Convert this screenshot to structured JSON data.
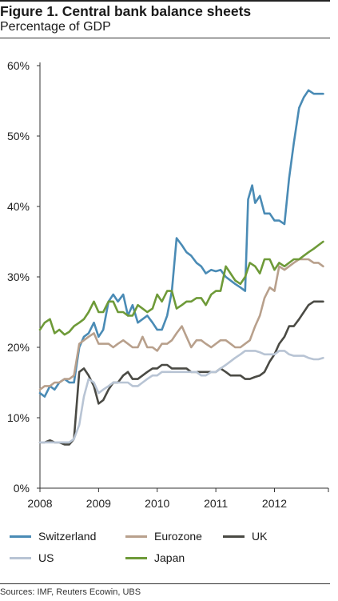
{
  "figure": {
    "title": "Figure 1. Central bank balance sheets",
    "subtitle": "Percentage of GDP",
    "source": "Sources: IMF, Reuters Ecowin, UBS"
  },
  "chart_data": {
    "type": "line",
    "title": "Figure 1. Central bank balance sheets",
    "subtitle": "Percentage of GDP",
    "xlabel": "",
    "ylabel": "",
    "xlim": [
      2008.0,
      2012.92
    ],
    "ylim": [
      0,
      60
    ],
    "x_ticks": [
      2008,
      2009,
      2010,
      2011,
      2012
    ],
    "y_ticks": [
      0,
      10,
      20,
      30,
      40,
      50,
      60
    ],
    "y_tick_labels": [
      "0%",
      "10%",
      "20%",
      "30%",
      "40%",
      "50%",
      "60%"
    ],
    "grid": false,
    "legend_position": "bottom",
    "series": [
      {
        "name": "Switzerland",
        "color": "#4a8bb5",
        "points": [
          [
            2008.0,
            13.5
          ],
          [
            2008.08,
            13.0
          ],
          [
            2008.17,
            14.5
          ],
          [
            2008.25,
            14.0
          ],
          [
            2008.33,
            15.0
          ],
          [
            2008.42,
            15.5
          ],
          [
            2008.5,
            15.0
          ],
          [
            2008.58,
            15.0
          ],
          [
            2008.67,
            20.0
          ],
          [
            2008.75,
            21.5
          ],
          [
            2008.83,
            22.0
          ],
          [
            2008.92,
            23.5
          ],
          [
            2009.0,
            21.5
          ],
          [
            2009.08,
            22.5
          ],
          [
            2009.17,
            26.5
          ],
          [
            2009.25,
            27.5
          ],
          [
            2009.33,
            26.5
          ],
          [
            2009.42,
            27.5
          ],
          [
            2009.5,
            24.5
          ],
          [
            2009.58,
            26.0
          ],
          [
            2009.67,
            23.5
          ],
          [
            2009.75,
            24.0
          ],
          [
            2009.83,
            24.5
          ],
          [
            2009.92,
            23.5
          ],
          [
            2010.0,
            22.5
          ],
          [
            2010.08,
            22.5
          ],
          [
            2010.17,
            24.5
          ],
          [
            2010.25,
            28.0
          ],
          [
            2010.33,
            35.5
          ],
          [
            2010.42,
            34.5
          ],
          [
            2010.5,
            33.5
          ],
          [
            2010.58,
            33.0
          ],
          [
            2010.67,
            32.0
          ],
          [
            2010.75,
            31.5
          ],
          [
            2010.83,
            30.5
          ],
          [
            2010.92,
            31.0
          ],
          [
            2011.0,
            30.8
          ],
          [
            2011.08,
            31.0
          ],
          [
            2011.17,
            30.0
          ],
          [
            2011.25,
            29.5
          ],
          [
            2011.33,
            29.0
          ],
          [
            2011.42,
            28.5
          ],
          [
            2011.5,
            28.0
          ],
          [
            2011.55,
            41.0
          ],
          [
            2011.62,
            43.0
          ],
          [
            2011.67,
            40.5
          ],
          [
            2011.75,
            41.5
          ],
          [
            2011.83,
            39.0
          ],
          [
            2011.92,
            39.0
          ],
          [
            2012.0,
            38.0
          ],
          [
            2012.08,
            38.0
          ],
          [
            2012.17,
            37.5
          ],
          [
            2012.25,
            44.0
          ],
          [
            2012.33,
            49.0
          ],
          [
            2012.42,
            54.0
          ],
          [
            2012.5,
            55.5
          ],
          [
            2012.58,
            56.5
          ],
          [
            2012.67,
            56.0
          ],
          [
            2012.75,
            56.0
          ],
          [
            2012.83,
            56.0
          ]
        ]
      },
      {
        "name": "Eurozone",
        "color": "#b8a08c",
        "points": [
          [
            2008.0,
            14.0
          ],
          [
            2008.08,
            14.5
          ],
          [
            2008.17,
            14.5
          ],
          [
            2008.25,
            15.0
          ],
          [
            2008.33,
            15.0
          ],
          [
            2008.42,
            15.5
          ],
          [
            2008.5,
            15.5
          ],
          [
            2008.58,
            16.0
          ],
          [
            2008.67,
            20.5
          ],
          [
            2008.75,
            21.0
          ],
          [
            2008.83,
            21.5
          ],
          [
            2008.92,
            22.0
          ],
          [
            2009.0,
            20.5
          ],
          [
            2009.08,
            20.5
          ],
          [
            2009.17,
            20.5
          ],
          [
            2009.25,
            20.0
          ],
          [
            2009.33,
            20.5
          ],
          [
            2009.42,
            21.0
          ],
          [
            2009.5,
            20.5
          ],
          [
            2009.58,
            20.0
          ],
          [
            2009.67,
            20.0
          ],
          [
            2009.75,
            21.5
          ],
          [
            2009.83,
            20.0
          ],
          [
            2009.92,
            20.0
          ],
          [
            2010.0,
            19.5
          ],
          [
            2010.08,
            20.5
          ],
          [
            2010.17,
            20.5
          ],
          [
            2010.25,
            21.0
          ],
          [
            2010.33,
            22.0
          ],
          [
            2010.42,
            23.0
          ],
          [
            2010.5,
            21.5
          ],
          [
            2010.58,
            20.0
          ],
          [
            2010.67,
            21.0
          ],
          [
            2010.75,
            21.0
          ],
          [
            2010.83,
            20.5
          ],
          [
            2010.92,
            20.0
          ],
          [
            2011.0,
            20.5
          ],
          [
            2011.08,
            21.0
          ],
          [
            2011.17,
            21.0
          ],
          [
            2011.25,
            20.5
          ],
          [
            2011.33,
            20.0
          ],
          [
            2011.42,
            20.0
          ],
          [
            2011.5,
            20.5
          ],
          [
            2011.58,
            21.0
          ],
          [
            2011.67,
            23.0
          ],
          [
            2011.75,
            24.5
          ],
          [
            2011.83,
            27.0
          ],
          [
            2011.92,
            28.5
          ],
          [
            2012.0,
            28.0
          ],
          [
            2012.08,
            31.5
          ],
          [
            2012.17,
            31.0
          ],
          [
            2012.25,
            31.5
          ],
          [
            2012.33,
            32.0
          ],
          [
            2012.42,
            32.5
          ],
          [
            2012.5,
            32.5
          ],
          [
            2012.58,
            32.5
          ],
          [
            2012.67,
            32.0
          ],
          [
            2012.75,
            32.0
          ],
          [
            2012.83,
            31.5
          ]
        ]
      },
      {
        "name": "UK",
        "color": "#4a4a44",
        "points": [
          [
            2008.0,
            6.5
          ],
          [
            2008.08,
            6.5
          ],
          [
            2008.17,
            6.8
          ],
          [
            2008.25,
            6.5
          ],
          [
            2008.33,
            6.5
          ],
          [
            2008.42,
            6.2
          ],
          [
            2008.5,
            6.2
          ],
          [
            2008.58,
            7.0
          ],
          [
            2008.67,
            16.5
          ],
          [
            2008.75,
            17.0
          ],
          [
            2008.83,
            16.0
          ],
          [
            2008.92,
            14.5
          ],
          [
            2009.0,
            12.0
          ],
          [
            2009.08,
            12.5
          ],
          [
            2009.17,
            14.0
          ],
          [
            2009.25,
            15.0
          ],
          [
            2009.33,
            15.0
          ],
          [
            2009.42,
            16.0
          ],
          [
            2009.5,
            16.5
          ],
          [
            2009.58,
            15.5
          ],
          [
            2009.67,
            15.5
          ],
          [
            2009.75,
            16.0
          ],
          [
            2009.83,
            16.5
          ],
          [
            2009.92,
            17.0
          ],
          [
            2010.0,
            17.0
          ],
          [
            2010.08,
            17.5
          ],
          [
            2010.17,
            17.5
          ],
          [
            2010.25,
            17.0
          ],
          [
            2010.33,
            17.0
          ],
          [
            2010.42,
            17.0
          ],
          [
            2010.5,
            17.0
          ],
          [
            2010.58,
            16.5
          ],
          [
            2010.67,
            16.5
          ],
          [
            2010.75,
            16.5
          ],
          [
            2010.83,
            16.5
          ],
          [
            2010.92,
            16.5
          ],
          [
            2011.0,
            16.5
          ],
          [
            2011.08,
            17.0
          ],
          [
            2011.17,
            16.5
          ],
          [
            2011.25,
            16.0
          ],
          [
            2011.33,
            16.0
          ],
          [
            2011.42,
            16.0
          ],
          [
            2011.5,
            15.5
          ],
          [
            2011.58,
            15.5
          ],
          [
            2011.67,
            15.8
          ],
          [
            2011.75,
            16.0
          ],
          [
            2011.83,
            16.5
          ],
          [
            2011.92,
            18.0
          ],
          [
            2012.0,
            19.0
          ],
          [
            2012.08,
            20.5
          ],
          [
            2012.17,
            21.5
          ],
          [
            2012.25,
            23.0
          ],
          [
            2012.33,
            23.0
          ],
          [
            2012.42,
            24.0
          ],
          [
            2012.5,
            25.0
          ],
          [
            2012.58,
            26.0
          ],
          [
            2012.67,
            26.5
          ],
          [
            2012.75,
            26.5
          ],
          [
            2012.83,
            26.5
          ]
        ]
      },
      {
        "name": "US",
        "color": "#b8c4d4",
        "points": [
          [
            2008.0,
            6.5
          ],
          [
            2008.08,
            6.5
          ],
          [
            2008.17,
            6.5
          ],
          [
            2008.25,
            6.5
          ],
          [
            2008.33,
            6.5
          ],
          [
            2008.42,
            6.5
          ],
          [
            2008.5,
            6.5
          ],
          [
            2008.58,
            7.0
          ],
          [
            2008.67,
            9.0
          ],
          [
            2008.75,
            13.0
          ],
          [
            2008.83,
            15.5
          ],
          [
            2008.92,
            15.0
          ],
          [
            2009.0,
            13.5
          ],
          [
            2009.08,
            14.0
          ],
          [
            2009.17,
            14.5
          ],
          [
            2009.25,
            15.0
          ],
          [
            2009.33,
            15.0
          ],
          [
            2009.42,
            15.0
          ],
          [
            2009.5,
            15.0
          ],
          [
            2009.58,
            14.5
          ],
          [
            2009.67,
            14.5
          ],
          [
            2009.75,
            15.0
          ],
          [
            2009.83,
            15.5
          ],
          [
            2009.92,
            16.0
          ],
          [
            2010.0,
            16.0
          ],
          [
            2010.08,
            16.5
          ],
          [
            2010.17,
            16.5
          ],
          [
            2010.25,
            16.5
          ],
          [
            2010.33,
            16.5
          ],
          [
            2010.42,
            16.5
          ],
          [
            2010.5,
            16.5
          ],
          [
            2010.58,
            16.5
          ],
          [
            2010.67,
            16.5
          ],
          [
            2010.75,
            16.0
          ],
          [
            2010.83,
            16.0
          ],
          [
            2010.92,
            16.5
          ],
          [
            2011.0,
            16.5
          ],
          [
            2011.08,
            17.0
          ],
          [
            2011.17,
            17.5
          ],
          [
            2011.25,
            18.0
          ],
          [
            2011.33,
            18.5
          ],
          [
            2011.42,
            19.0
          ],
          [
            2011.5,
            19.5
          ],
          [
            2011.58,
            19.5
          ],
          [
            2011.67,
            19.5
          ],
          [
            2011.75,
            19.3
          ],
          [
            2011.83,
            19.0
          ],
          [
            2011.92,
            19.0
          ],
          [
            2012.0,
            19.0
          ],
          [
            2012.08,
            19.5
          ],
          [
            2012.17,
            19.5
          ],
          [
            2012.25,
            19.0
          ],
          [
            2012.33,
            18.8
          ],
          [
            2012.42,
            18.8
          ],
          [
            2012.5,
            18.8
          ],
          [
            2012.58,
            18.5
          ],
          [
            2012.67,
            18.3
          ],
          [
            2012.75,
            18.3
          ],
          [
            2012.83,
            18.5
          ]
        ]
      },
      {
        "name": "Japan",
        "color": "#6e9a38",
        "points": [
          [
            2008.0,
            22.5
          ],
          [
            2008.08,
            23.5
          ],
          [
            2008.17,
            24.0
          ],
          [
            2008.25,
            22.0
          ],
          [
            2008.33,
            22.5
          ],
          [
            2008.42,
            21.8
          ],
          [
            2008.5,
            22.2
          ],
          [
            2008.58,
            23.0
          ],
          [
            2008.67,
            23.5
          ],
          [
            2008.75,
            24.0
          ],
          [
            2008.83,
            25.0
          ],
          [
            2008.92,
            26.5
          ],
          [
            2009.0,
            25.0
          ],
          [
            2009.08,
            25.0
          ],
          [
            2009.17,
            26.5
          ],
          [
            2009.25,
            26.5
          ],
          [
            2009.33,
            25.0
          ],
          [
            2009.42,
            25.0
          ],
          [
            2009.5,
            24.5
          ],
          [
            2009.58,
            24.5
          ],
          [
            2009.67,
            26.0
          ],
          [
            2009.75,
            25.5
          ],
          [
            2009.83,
            25.0
          ],
          [
            2009.92,
            25.5
          ],
          [
            2010.0,
            27.5
          ],
          [
            2010.08,
            26.5
          ],
          [
            2010.17,
            28.0
          ],
          [
            2010.25,
            28.0
          ],
          [
            2010.33,
            25.5
          ],
          [
            2010.42,
            26.0
          ],
          [
            2010.5,
            26.5
          ],
          [
            2010.58,
            26.5
          ],
          [
            2010.67,
            27.0
          ],
          [
            2010.75,
            27.0
          ],
          [
            2010.83,
            26.0
          ],
          [
            2010.92,
            27.5
          ],
          [
            2011.0,
            28.0
          ],
          [
            2011.08,
            28.0
          ],
          [
            2011.17,
            31.5
          ],
          [
            2011.25,
            30.5
          ],
          [
            2011.33,
            29.5
          ],
          [
            2011.42,
            29.0
          ],
          [
            2011.5,
            30.0
          ],
          [
            2011.58,
            32.0
          ],
          [
            2011.67,
            31.5
          ],
          [
            2011.75,
            30.5
          ],
          [
            2011.83,
            32.5
          ],
          [
            2011.92,
            32.5
          ],
          [
            2012.0,
            31.0
          ],
          [
            2012.08,
            32.0
          ],
          [
            2012.17,
            31.5
          ],
          [
            2012.25,
            32.0
          ],
          [
            2012.33,
            32.5
          ],
          [
            2012.42,
            32.5
          ],
          [
            2012.5,
            33.0
          ],
          [
            2012.58,
            33.5
          ],
          [
            2012.67,
            34.0
          ],
          [
            2012.75,
            34.5
          ],
          [
            2012.83,
            35.0
          ]
        ]
      }
    ]
  }
}
